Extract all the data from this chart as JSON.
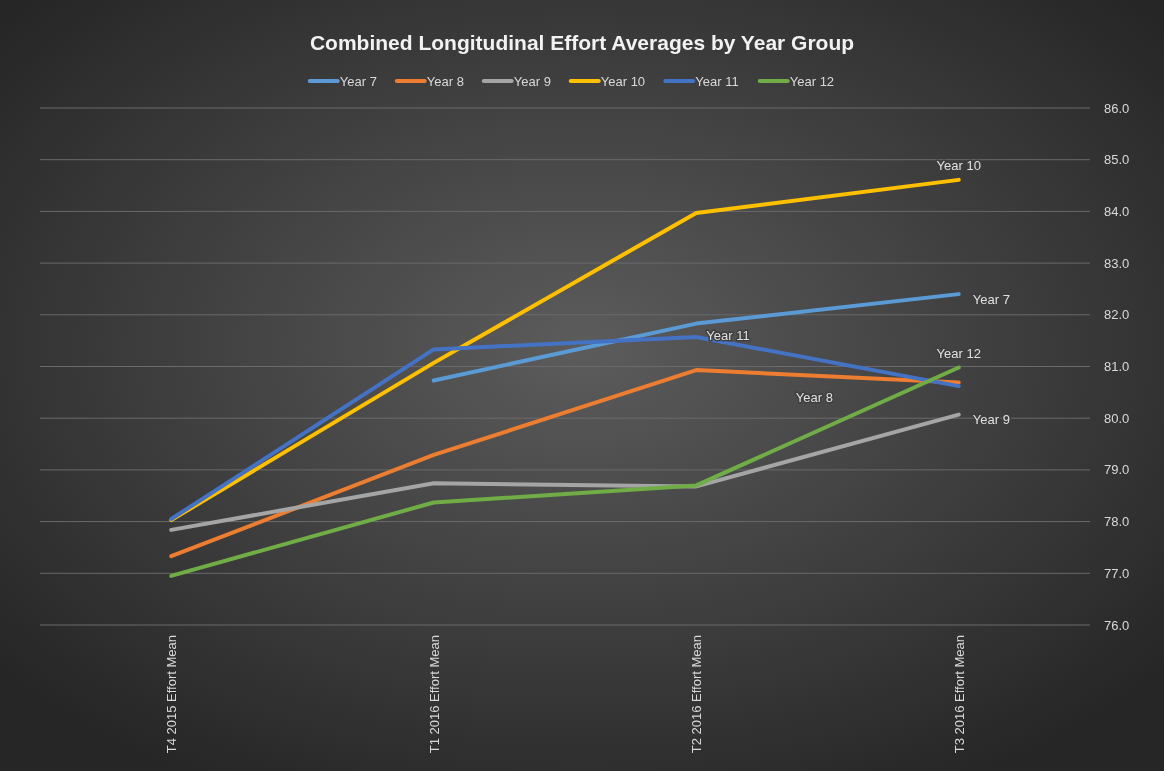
{
  "chart_data": {
    "type": "line",
    "title": "Combined Longitudinal Effort Averages by Year Group",
    "categories": [
      "T4 2015 Effort Mean",
      "T1 2016 Effort Mean",
      "T2 2016 Effort Mean",
      "T3 2016 Effort Mean"
    ],
    "series": [
      {
        "name": "Year 7",
        "color": "#5b9bd5",
        "values": [
          null,
          80.73,
          81.83,
          82.4
        ]
      },
      {
        "name": "Year 8",
        "color": "#ed7d31",
        "values": [
          77.33,
          79.29,
          80.93,
          80.69
        ]
      },
      {
        "name": "Year 9",
        "color": "#a5a5a5",
        "values": [
          77.84,
          78.74,
          78.68,
          80.07
        ]
      },
      {
        "name": "Year 10",
        "color": "#ffc000",
        "values": [
          78.03,
          81.07,
          83.97,
          84.61
        ]
      },
      {
        "name": "Year 11",
        "color": "#4472c4",
        "values": [
          78.05,
          81.33,
          81.57,
          80.62
        ]
      },
      {
        "name": "Year 12",
        "color": "#70ad47",
        "values": [
          76.95,
          78.37,
          78.7,
          80.98
        ]
      }
    ],
    "ylim": [
      76,
      86
    ],
    "yticks": [
      {
        "value": 76,
        "label": "76.0"
      },
      {
        "value": 77,
        "label": "77.0"
      },
      {
        "value": 78,
        "label": "78.0"
      },
      {
        "value": 79,
        "label": "79.0"
      },
      {
        "value": 80,
        "label": "80.0"
      },
      {
        "value": 81,
        "label": "81.0"
      },
      {
        "value": 82,
        "label": "82.0"
      },
      {
        "value": 83,
        "label": "83.0"
      },
      {
        "value": 84,
        "label": "84.0"
      },
      {
        "value": 85,
        "label": "85.0"
      },
      {
        "value": 86,
        "label": "86.0"
      }
    ],
    "grid": "y",
    "legend": "top",
    "marker": "none",
    "line_style": "solid"
  }
}
